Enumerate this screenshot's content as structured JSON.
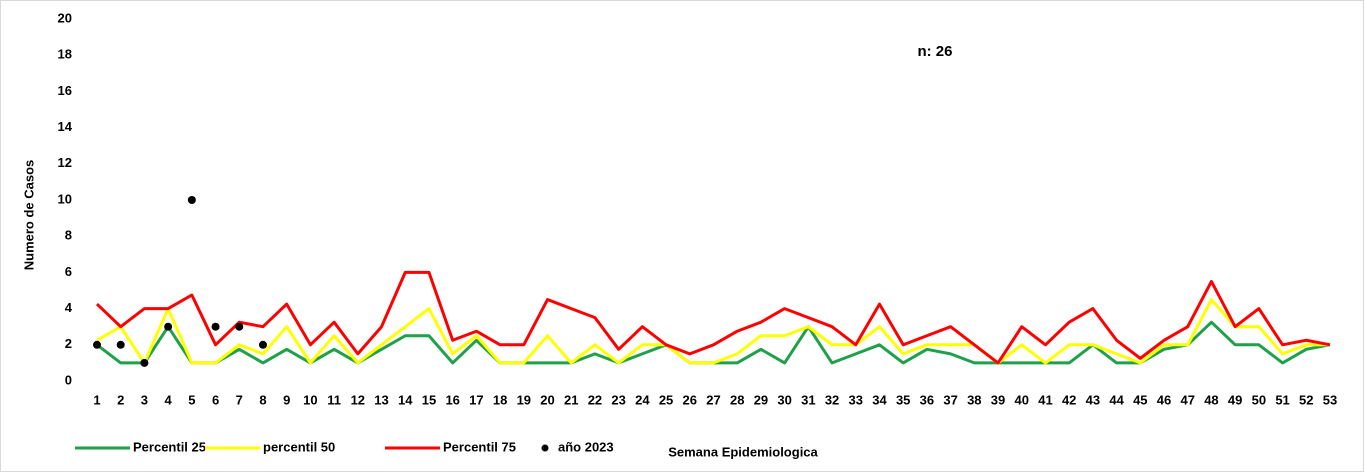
{
  "chart_data": {
    "type": "line",
    "annotation": "n: 26",
    "ylabel": "Numero de Casos",
    "xlabel": "Semana Epidemiologica",
    "categories": [
      1,
      2,
      3,
      4,
      5,
      6,
      7,
      8,
      9,
      10,
      11,
      12,
      13,
      14,
      15,
      16,
      17,
      18,
      19,
      20,
      21,
      22,
      23,
      24,
      25,
      26,
      27,
      28,
      29,
      30,
      31,
      32,
      33,
      34,
      35,
      36,
      37,
      38,
      39,
      40,
      41,
      42,
      43,
      44,
      45,
      46,
      47,
      48,
      49,
      50,
      51,
      52,
      53
    ],
    "ylim": [
      0,
      20
    ],
    "yticks": [
      0,
      2,
      4,
      6,
      8,
      10,
      12,
      14,
      16,
      18,
      20
    ],
    "grid": false,
    "legend": "bottom",
    "series": [
      {
        "name": "Percentil 25",
        "color": "#1ea149",
        "type": "line",
        "values": [
          2,
          1,
          1,
          3,
          1,
          1,
          1.75,
          1,
          1.75,
          1,
          1.75,
          1,
          1.75,
          2.5,
          2.5,
          1,
          2.25,
          1,
          1,
          1,
          1,
          1.5,
          1,
          1.5,
          2,
          1,
          1,
          1,
          1.75,
          1,
          3,
          1,
          1.5,
          2,
          1,
          1.75,
          1.5,
          1,
          1,
          1,
          1,
          1,
          2,
          1,
          1,
          1.75,
          2,
          3.25,
          2,
          2,
          1,
          1.75,
          2
        ]
      },
      {
        "name": "percentil 50",
        "color": "#ffff00",
        "type": "line",
        "values": [
          2.25,
          3,
          1,
          4,
          1,
          1,
          2,
          1.5,
          3,
          1,
          2.5,
          1,
          2,
          3,
          4,
          1.5,
          2.5,
          1,
          1,
          2.5,
          1,
          2,
          1,
          2,
          2,
          1,
          1,
          1.5,
          2.5,
          2.5,
          3,
          2,
          2,
          3,
          1.5,
          2,
          2,
          2,
          1,
          2,
          1,
          2,
          2,
          1.5,
          1,
          2,
          2,
          4.5,
          3,
          3,
          1.5,
          2,
          2
        ]
      },
      {
        "name": "Percentil 75",
        "color": "#ff0000",
        "type": "line",
        "values": [
          4.25,
          3,
          4,
          4,
          4.75,
          2,
          3.25,
          3,
          4.25,
          2,
          3.25,
          1.5,
          3,
          6,
          6,
          2.25,
          2.75,
          2,
          2,
          4.5,
          4,
          3.5,
          1.75,
          3,
          2,
          1.5,
          2,
          2.75,
          3.25,
          4,
          3.5,
          3,
          2,
          4.25,
          2,
          2.5,
          3,
          2,
          1,
          3,
          2,
          3.25,
          4,
          2.25,
          1.25,
          2.25,
          3,
          5.5,
          3,
          4,
          2,
          2.25,
          2
        ]
      },
      {
        "name": "año 2023",
        "color": "#000000",
        "type": "scatter",
        "values": [
          2,
          2,
          1,
          3,
          10,
          3,
          3,
          2,
          null,
          null,
          null,
          null,
          null,
          null,
          null,
          null,
          null,
          null,
          null,
          null,
          null,
          null,
          null,
          null,
          null,
          null,
          null,
          null,
          null,
          null,
          null,
          null,
          null,
          null,
          null,
          null,
          null,
          null,
          null,
          null,
          null,
          null,
          null,
          null,
          null,
          null,
          null,
          null,
          null,
          null,
          null,
          null,
          null
        ]
      }
    ]
  }
}
